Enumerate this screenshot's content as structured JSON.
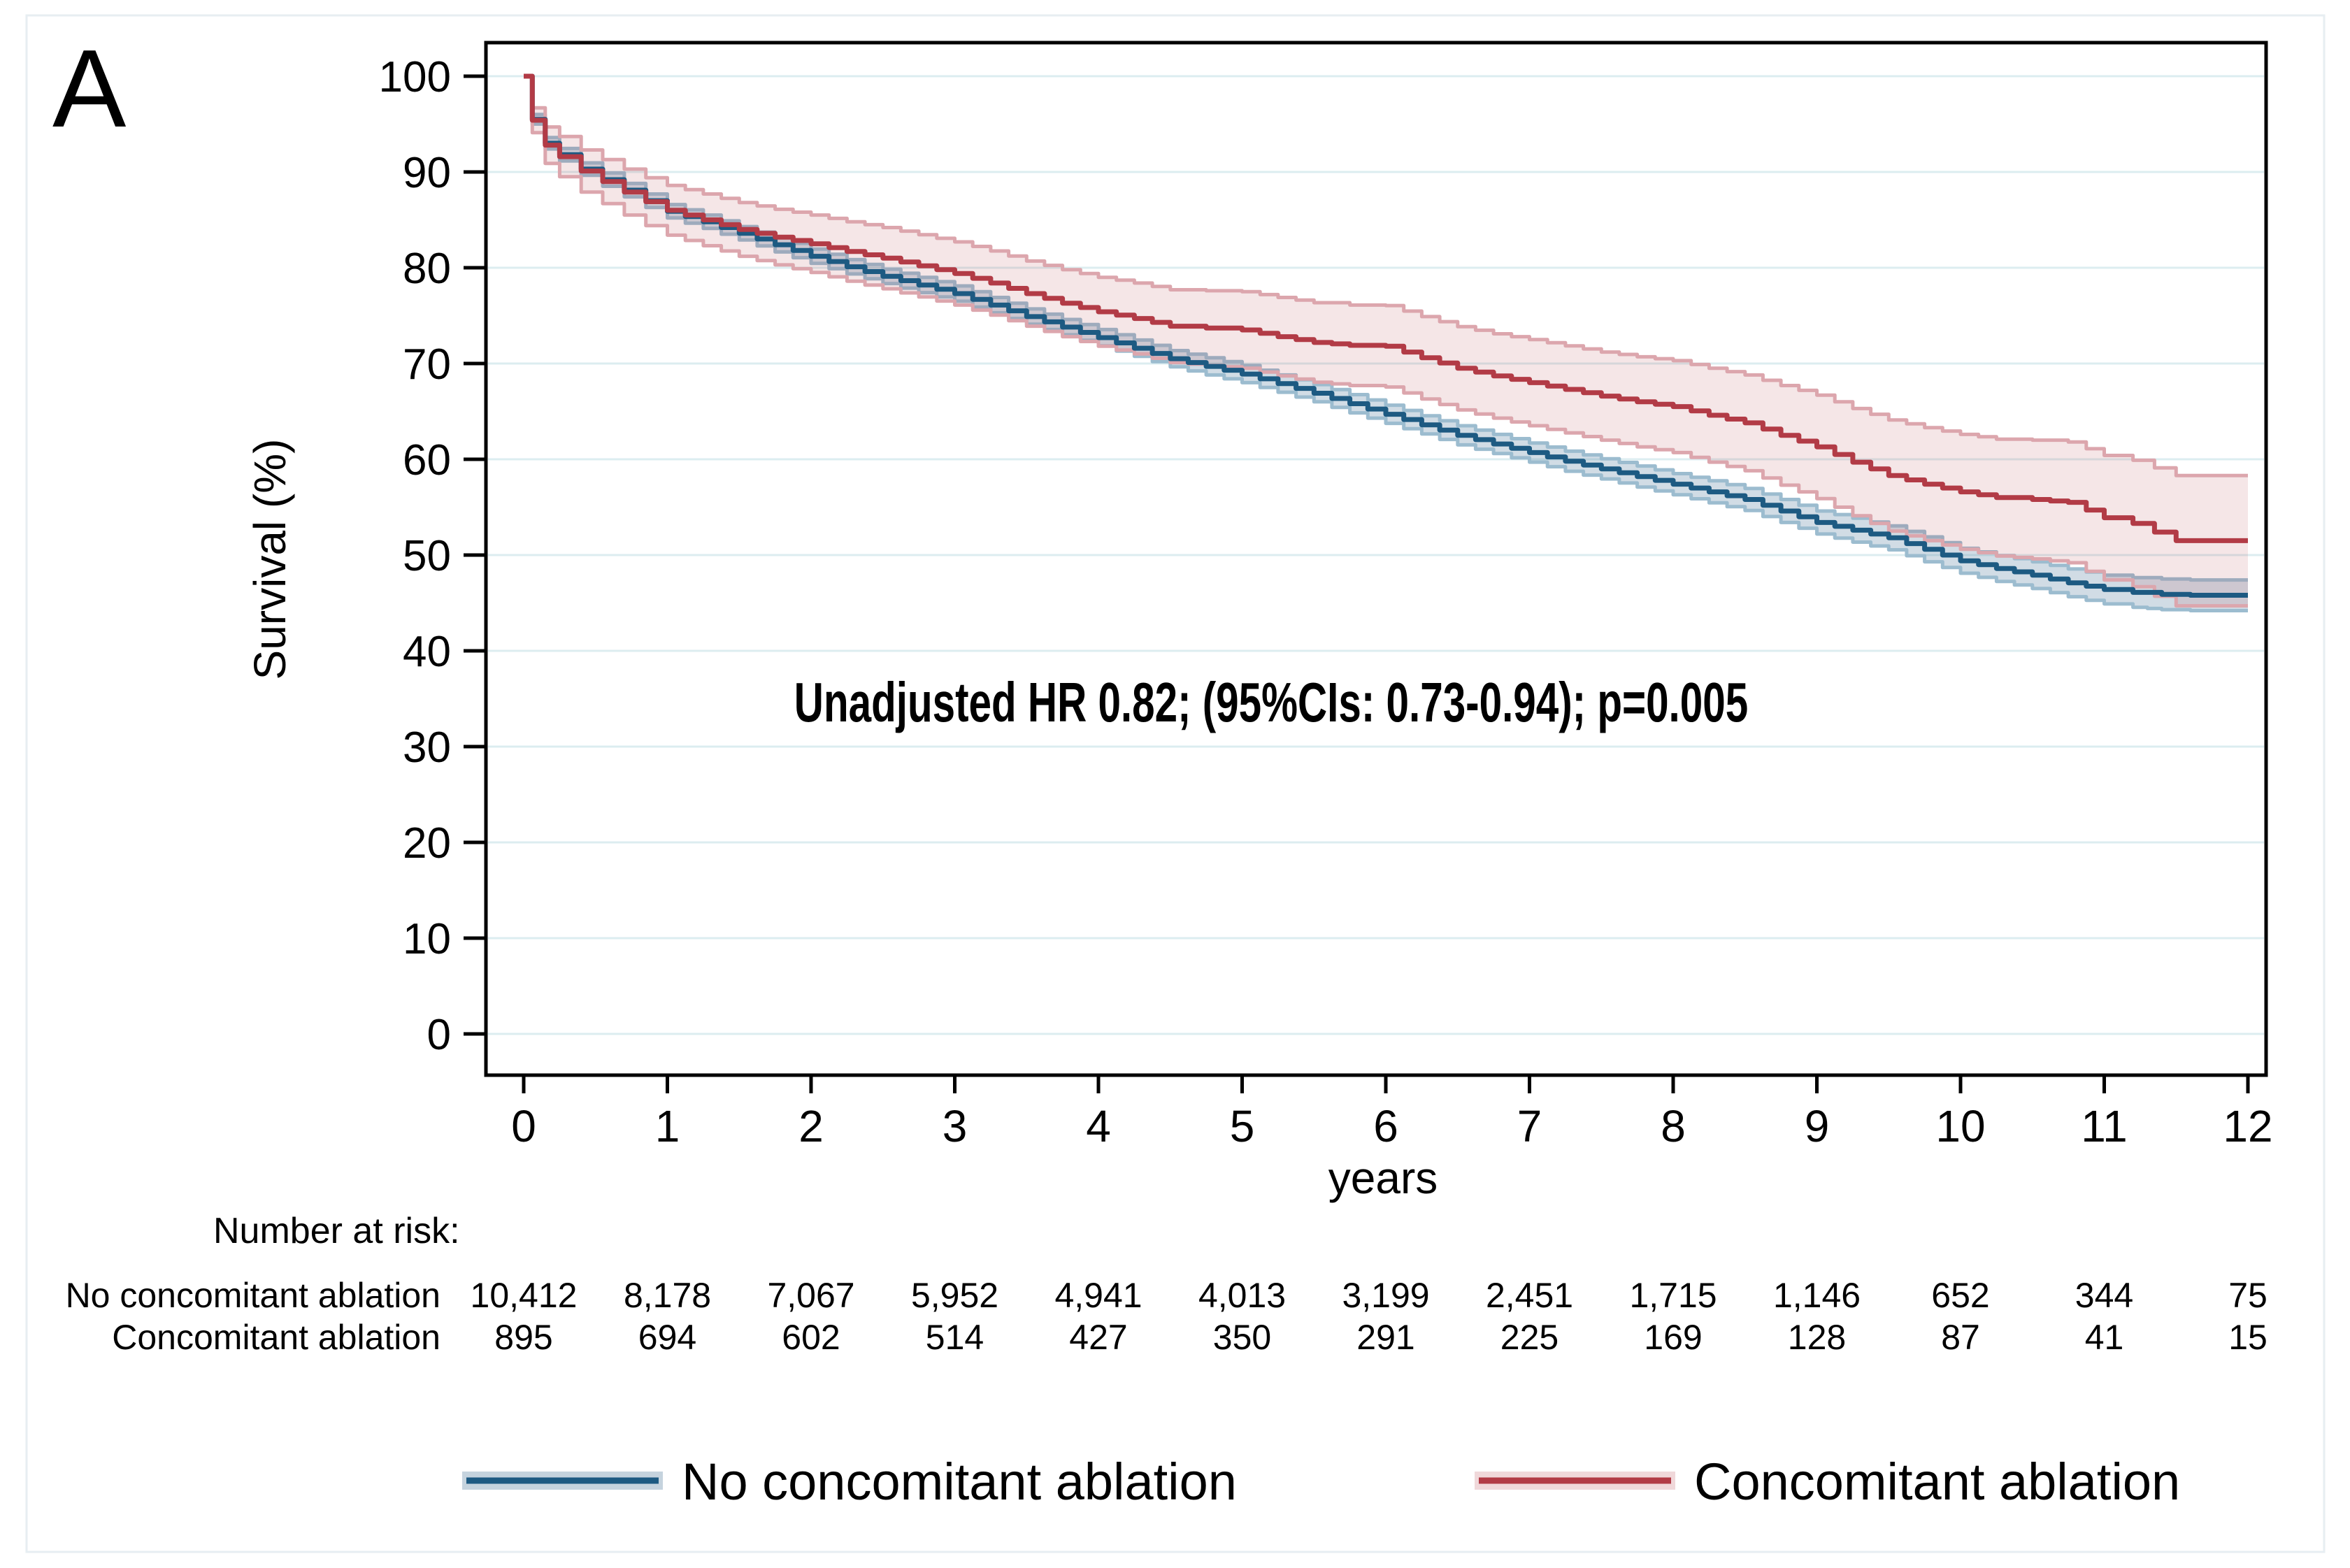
{
  "panel_label": "A",
  "colors": {
    "blue_line": "#1d5a82",
    "blue_band_edge": "#9cbccf",
    "blue_band_fill": "rgba(90,130,160,0.28)",
    "red_line": "#b23b46",
    "red_band_edge": "#dca6ad",
    "red_band_fill": "rgba(178,59,70,0.13)",
    "gridline": "#dcedf0",
    "axis": "#000000"
  },
  "chart_data": {
    "type": "line",
    "subtype": "kaplan-meier-step-with-ci-bands",
    "title": "",
    "xlabel": "years",
    "ylabel": "Survival (%)",
    "xlim": [
      0,
      12
    ],
    "ylim": [
      0,
      100
    ],
    "xticks": [
      "0",
      "1",
      "2",
      "3",
      "4",
      "5",
      "6",
      "7",
      "8",
      "9",
      "10",
      "11",
      "12"
    ],
    "yticks": [
      "0",
      "10",
      "20",
      "30",
      "40",
      "50",
      "60",
      "70",
      "80",
      "90",
      "100"
    ],
    "grid": "horizontal",
    "legend_position": "bottom",
    "annotation": "Unadjusted HR 0.82; (95%CIs: 0.73-0.94); p=0.005",
    "series": [
      {
        "name": "No concomitant ablation",
        "line_color": "#1d5a82",
        "band_edge_color": "#9cbccf",
        "band_fill_color": "rgba(90,130,160,0.28)",
        "x": [
          0,
          0.06,
          0.15,
          0.25,
          0.4,
          0.55,
          0.7,
          0.85,
          1,
          1.25,
          1.5,
          1.75,
          2,
          2.25,
          2.5,
          2.75,
          3,
          3.25,
          3.5,
          3.75,
          4,
          4.25,
          4.5,
          4.75,
          5,
          5.25,
          5.5,
          5.75,
          6,
          6.25,
          6.5,
          6.75,
          7,
          7.25,
          7.5,
          7.75,
          8,
          8.25,
          8.5,
          8.75,
          9,
          9.25,
          9.5,
          9.75,
          10,
          10.25,
          10.5,
          10.75,
          11,
          11.2,
          11.4,
          11.6,
          12
        ],
        "y": [
          100,
          95.5,
          93.0,
          91.8,
          90.3,
          89.2,
          88.1,
          87.0,
          85.9,
          84.8,
          83.6,
          82.4,
          81.2,
          80.1,
          79.1,
          78.2,
          77.3,
          76.1,
          74.9,
          73.8,
          72.7,
          71.6,
          70.5,
          69.7,
          68.9,
          67.9,
          66.9,
          65.8,
          64.7,
          63.6,
          62.5,
          61.6,
          60.7,
          59.8,
          59.0,
          58.2,
          57.4,
          56.6,
          55.8,
          54.6,
          53.4,
          52.6,
          51.8,
          50.6,
          49.4,
          48.6,
          47.9,
          47.1,
          46.4,
          46.1,
          45.9,
          45.8,
          45.8
        ],
        "ci": [
          0,
          0.5,
          0.6,
          0.65,
          0.65,
          0.7,
          0.7,
          0.7,
          0.7,
          0.7,
          0.7,
          0.75,
          0.75,
          0.75,
          0.75,
          0.8,
          0.8,
          0.8,
          0.8,
          0.8,
          0.85,
          0.85,
          0.85,
          0.9,
          0.9,
          0.9,
          0.9,
          0.95,
          0.95,
          0.95,
          1.0,
          1.0,
          1.0,
          1.05,
          1.05,
          1.1,
          1.1,
          1.15,
          1.15,
          1.2,
          1.2,
          1.25,
          1.25,
          1.3,
          1.3,
          1.35,
          1.4,
          1.45,
          1.5,
          1.55,
          1.6,
          1.6,
          1.6
        ]
      },
      {
        "name": "Concomitant ablation",
        "line_color": "#b23b46",
        "band_edge_color": "#dca6ad",
        "band_fill_color": "rgba(178,59,70,0.13)",
        "x": [
          0,
          0.06,
          0.15,
          0.25,
          0.4,
          0.55,
          0.7,
          0.85,
          1,
          1.25,
          1.5,
          1.75,
          2,
          2.25,
          2.5,
          2.75,
          3,
          3.25,
          3.5,
          3.75,
          4,
          4.25,
          4.5,
          4.75,
          5,
          5.25,
          5.5,
          5.75,
          6,
          6.25,
          6.5,
          6.75,
          7,
          7.25,
          7.5,
          7.75,
          8,
          8.25,
          8.5,
          8.75,
          9,
          9.25,
          9.5,
          9.75,
          10,
          10.25,
          10.5,
          10.75,
          11,
          11.2,
          11.5,
          12
        ],
        "y": [
          100,
          95.4,
          92.8,
          91.6,
          90.1,
          89.0,
          87.9,
          86.9,
          86.0,
          85.0,
          84.0,
          83.2,
          82.5,
          81.7,
          81.0,
          80.2,
          79.4,
          78.4,
          77.3,
          76.3,
          75.4,
          74.7,
          73.9,
          73.7,
          73.5,
          72.8,
          72.2,
          71.9,
          71.8,
          70.6,
          69.5,
          68.7,
          68.0,
          67.3,
          66.6,
          66.0,
          65.5,
          64.6,
          63.8,
          62.5,
          61.3,
          59.7,
          58.3,
          57.4,
          56.6,
          56.0,
          55.8,
          55.5,
          53.9,
          53.3,
          51.5,
          51.5
        ],
        "ci": [
          0,
          1.3,
          1.9,
          2.1,
          2.2,
          2.3,
          2.4,
          2.5,
          2.6,
          2.7,
          2.8,
          2.9,
          3.0,
          3.1,
          3.2,
          3.25,
          3.3,
          3.35,
          3.4,
          3.5,
          3.6,
          3.7,
          3.8,
          3.9,
          4.0,
          4.1,
          4.15,
          4.2,
          4.25,
          4.3,
          4.35,
          4.4,
          4.5,
          4.55,
          4.6,
          4.7,
          4.8,
          4.9,
          5.0,
          5.2,
          5.4,
          5.6,
          5.8,
          5.9,
          6.0,
          6.1,
          6.2,
          6.3,
          6.5,
          6.6,
          6.8,
          6.8
        ]
      }
    ],
    "risk_table": {
      "title": "Number at risk:",
      "rows": [
        {
          "label": "No concomitant ablation",
          "values": [
            "10,412",
            "8,178",
            "7,067",
            "5,952",
            "4,941",
            "4,013",
            "3,199",
            "2,451",
            "1,715",
            "1,146",
            "652",
            "344",
            "75"
          ]
        },
        {
          "label": "Concomitant ablation",
          "values": [
            "895",
            "694",
            "602",
            "514",
            "427",
            "350",
            "291",
            "225",
            "169",
            "128",
            "87",
            "41",
            "15"
          ]
        }
      ]
    },
    "legend": [
      {
        "label": "No concomitant ablation",
        "color": "#1d5a82",
        "halo": "rgba(90,130,160,0.35)"
      },
      {
        "label": "Concomitant ablation",
        "color": "#b23b46",
        "halo": "rgba(178,59,70,0.20)"
      }
    ]
  }
}
